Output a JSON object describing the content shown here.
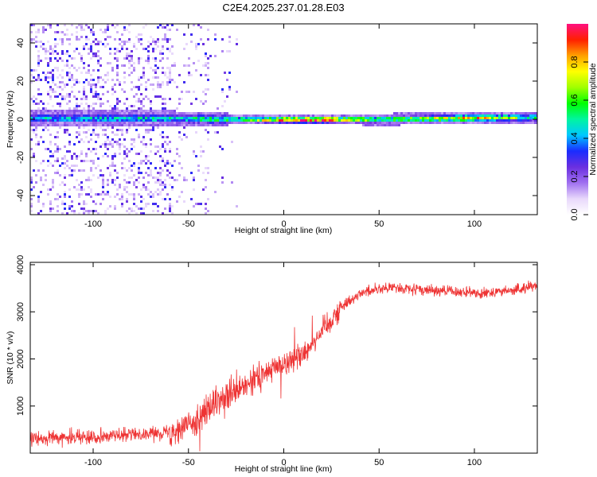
{
  "title": "C2E4.2025.237.01.28.E03",
  "chart_data": [
    {
      "type": "heatmap",
      "xlabel": "Height of straight line (km)",
      "ylabel": "Frequency (Hz)",
      "xlim": [
        -133,
        133
      ],
      "ylim": [
        -50,
        50
      ],
      "xticks": [
        -100,
        -50,
        0,
        50,
        100
      ],
      "xtick_labels": [
        "-100",
        "-50",
        "0",
        "50",
        "100"
      ],
      "yticks": [
        -40,
        -20,
        0,
        20,
        40
      ],
      "ytick_labels": [
        "-40",
        "-20",
        "0",
        "20",
        "40"
      ],
      "colorbar": {
        "label": "Normalized spectral amplitude",
        "range": [
          0,
          1
        ],
        "ticks": [
          0.0,
          0.2,
          0.4,
          0.6,
          0.8
        ],
        "tick_labels": [
          "0.0",
          "0.2",
          "0.4",
          "0.6",
          "0.8"
        ],
        "colors": [
          "#ffffff",
          "#e8d8fb",
          "#a070f0",
          "#6a2fe0",
          "#1a2cff",
          "#00c8ff",
          "#00f5a0",
          "#00ff00",
          "#a0ff00",
          "#ffff00",
          "#ffa000",
          "#ff2000",
          "#ff1080"
        ]
      },
      "description_points": {
        "band_center_hz": [
          [
            -100,
            1
          ],
          [
            -60,
            1
          ],
          [
            -30,
            0.5
          ],
          [
            0,
            0.3
          ],
          [
            50,
            0.5
          ],
          [
            100,
            1.2
          ],
          [
            133,
            1.5
          ]
        ],
        "peak_amplitude": [
          [
            -100,
            0.45
          ],
          [
            -50,
            0.5
          ],
          [
            -20,
            0.6
          ],
          [
            0,
            0.9
          ],
          [
            20,
            0.95
          ],
          [
            50,
            0.55
          ],
          [
            100,
            0.8
          ],
          [
            133,
            0.5
          ]
        ]
      }
    },
    {
      "type": "line",
      "xlabel": "Height of straight line (km)",
      "ylabel": "SNR (10 * v/v)",
      "xlim": [
        -133,
        133
      ],
      "ylim": [
        0,
        4050
      ],
      "xticks": [
        -100,
        -50,
        0,
        50,
        100
      ],
      "xtick_labels": [
        "-100",
        "-50",
        "0",
        "50",
        "100"
      ],
      "yticks": [
        1000,
        2000,
        3000,
        4000
      ],
      "ytick_labels": [
        "1000",
        "2000",
        "3000",
        "4000"
      ],
      "color": "#ee3333",
      "trend": {
        "x": [
          -133,
          -100,
          -80,
          -60,
          -50,
          -40,
          -30,
          -20,
          -10,
          0,
          10,
          20,
          30,
          40,
          50,
          60,
          80,
          100,
          120,
          133
        ],
        "y": [
          300,
          350,
          400,
          450,
          600,
          900,
          1200,
          1400,
          1700,
          1900,
          2100,
          2600,
          3100,
          3400,
          3500,
          3500,
          3450,
          3400,
          3450,
          3550
        ]
      }
    }
  ]
}
